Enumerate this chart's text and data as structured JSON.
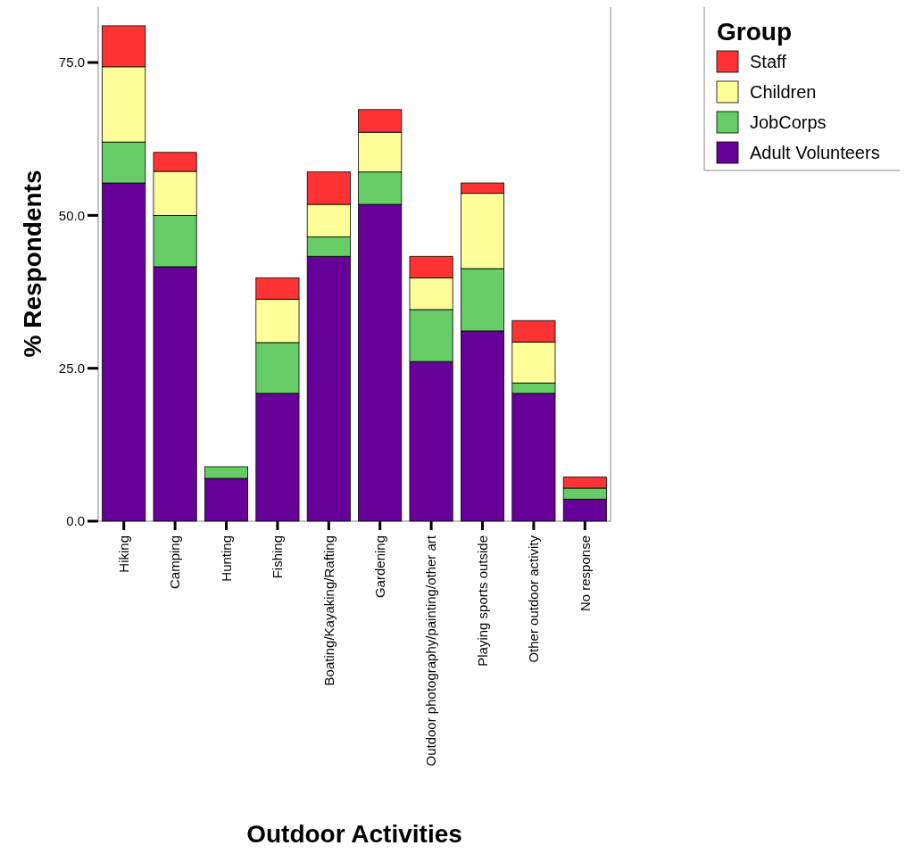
{
  "chart_data": {
    "type": "bar",
    "stacked": true,
    "xlabel": "Outdoor Activities",
    "ylabel": "% Respondents",
    "legend_title": "Group",
    "legend": "top right",
    "grid": false,
    "categories": [
      "Hiking",
      "Camping",
      "Hunting",
      "Fishing",
      "Boating/Kayaking/Rafting",
      "Gardening",
      "Outdoor photography/painting/other art",
      "Playing sports outside",
      "Other outdoor activity",
      "No response"
    ],
    "series": [
      {
        "name": "Adult Volunteers",
        "color": "#660099",
        "values": [
          55.3,
          41.6,
          7.0,
          20.9,
          43.3,
          51.8,
          26.1,
          31.1,
          20.9,
          3.6
        ]
      },
      {
        "name": "JobCorps",
        "color": "#66cc66",
        "values": [
          6.7,
          8.4,
          1.9,
          8.3,
          3.2,
          5.3,
          8.5,
          10.2,
          1.7,
          1.8
        ]
      },
      {
        "name": "Children",
        "color": "#ffff99",
        "values": [
          12.3,
          7.2,
          0,
          7.1,
          5.3,
          6.5,
          5.2,
          12.3,
          6.7,
          0
        ]
      },
      {
        "name": "Staff",
        "color": "#ff3333",
        "values": [
          6.7,
          3.1,
          0,
          3.5,
          5.3,
          3.7,
          3.5,
          1.7,
          3.5,
          1.8
        ]
      }
    ],
    "ylim": [
      0,
      84.2
    ],
    "yticks": [
      {
        "value": 0,
        "label": "0.0"
      },
      {
        "value": 25,
        "label": "25.0"
      },
      {
        "value": 50,
        "label": "50.0"
      },
      {
        "value": 75,
        "label": "75.0"
      }
    ]
  }
}
